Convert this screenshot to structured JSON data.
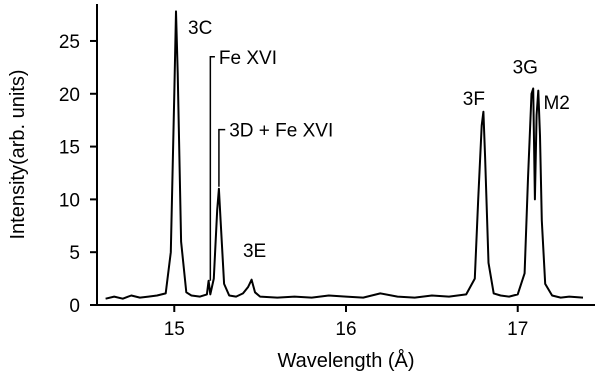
{
  "chart_data": {
    "type": "line",
    "xlabel": "Wavelength (Å)",
    "ylabel": "Intensity(arb. units)",
    "xlim": [
      14.55,
      17.45
    ],
    "ylim": [
      0,
      28.5
    ],
    "xticks": [
      15,
      16,
      17
    ],
    "xtick_labels": [
      "15",
      "16",
      "17"
    ],
    "yticks": [
      0,
      5,
      10,
      15,
      20,
      25
    ],
    "ytick_labels": [
      "0",
      "5",
      "10",
      "15",
      "20",
      "25"
    ],
    "grid": false,
    "series": [
      {
        "x": [
          14.6,
          14.65,
          14.7,
          14.75,
          14.8,
          14.85,
          14.9,
          14.95,
          14.98,
          15.0,
          15.01,
          15.02,
          15.04,
          15.07,
          15.1,
          15.15,
          15.19,
          15.2,
          15.21,
          15.23,
          15.25,
          15.26,
          15.27,
          15.29,
          15.32,
          15.36,
          15.4,
          15.43,
          15.45,
          15.47,
          15.5,
          15.6,
          15.7,
          15.8,
          15.9,
          16.0,
          16.1,
          16.2,
          16.3,
          16.4,
          16.5,
          16.6,
          16.7,
          16.75,
          16.77,
          16.79,
          16.8,
          16.81,
          16.83,
          16.86,
          16.9,
          16.95,
          17.0,
          17.04,
          17.06,
          17.08,
          17.09,
          17.1,
          17.11,
          17.12,
          17.13,
          17.14,
          17.16,
          17.2,
          17.25,
          17.3,
          17.38
        ],
        "y": [
          0.6,
          0.8,
          0.6,
          0.9,
          0.7,
          0.8,
          0.9,
          1.1,
          5.0,
          20.0,
          27.8,
          22.0,
          6.0,
          1.2,
          0.9,
          0.8,
          1.0,
          2.3,
          1.0,
          2.5,
          9.0,
          11.0,
          8.0,
          2.0,
          0.9,
          0.8,
          1.1,
          1.7,
          2.4,
          1.2,
          0.8,
          0.7,
          0.8,
          0.7,
          0.9,
          0.8,
          0.7,
          1.1,
          0.8,
          0.7,
          0.9,
          0.8,
          1.0,
          2.5,
          10.0,
          17.0,
          18.3,
          14.0,
          4.0,
          1.1,
          0.9,
          0.8,
          1.0,
          3.0,
          12.0,
          20.0,
          20.5,
          10.0,
          18.0,
          20.3,
          16.0,
          8.0,
          2.0,
          0.9,
          0.7,
          0.8,
          0.7
        ]
      }
    ],
    "annotations": [
      {
        "text": "3C",
        "x": 15.08,
        "y": 26.3
      },
      {
        "text": "Fe XVI",
        "x": 15.26,
        "y": 23.5,
        "leader_from": [
          15.21,
          2.3
        ],
        "leader_to": [
          15.21,
          23.5
        ]
      },
      {
        "text": "3D + Fe XVI",
        "x": 15.32,
        "y": 16.6,
        "leader_from": [
          15.26,
          11.2
        ],
        "leader_to": [
          15.26,
          16.6
        ]
      },
      {
        "text": "3E",
        "x": 15.4,
        "y": 5.2
      },
      {
        "text": "3F",
        "x": 16.68,
        "y": 19.6
      },
      {
        "text": "3G",
        "x": 16.97,
        "y": 22.6
      },
      {
        "text": "M2",
        "x": 17.15,
        "y": 19.2
      }
    ]
  }
}
